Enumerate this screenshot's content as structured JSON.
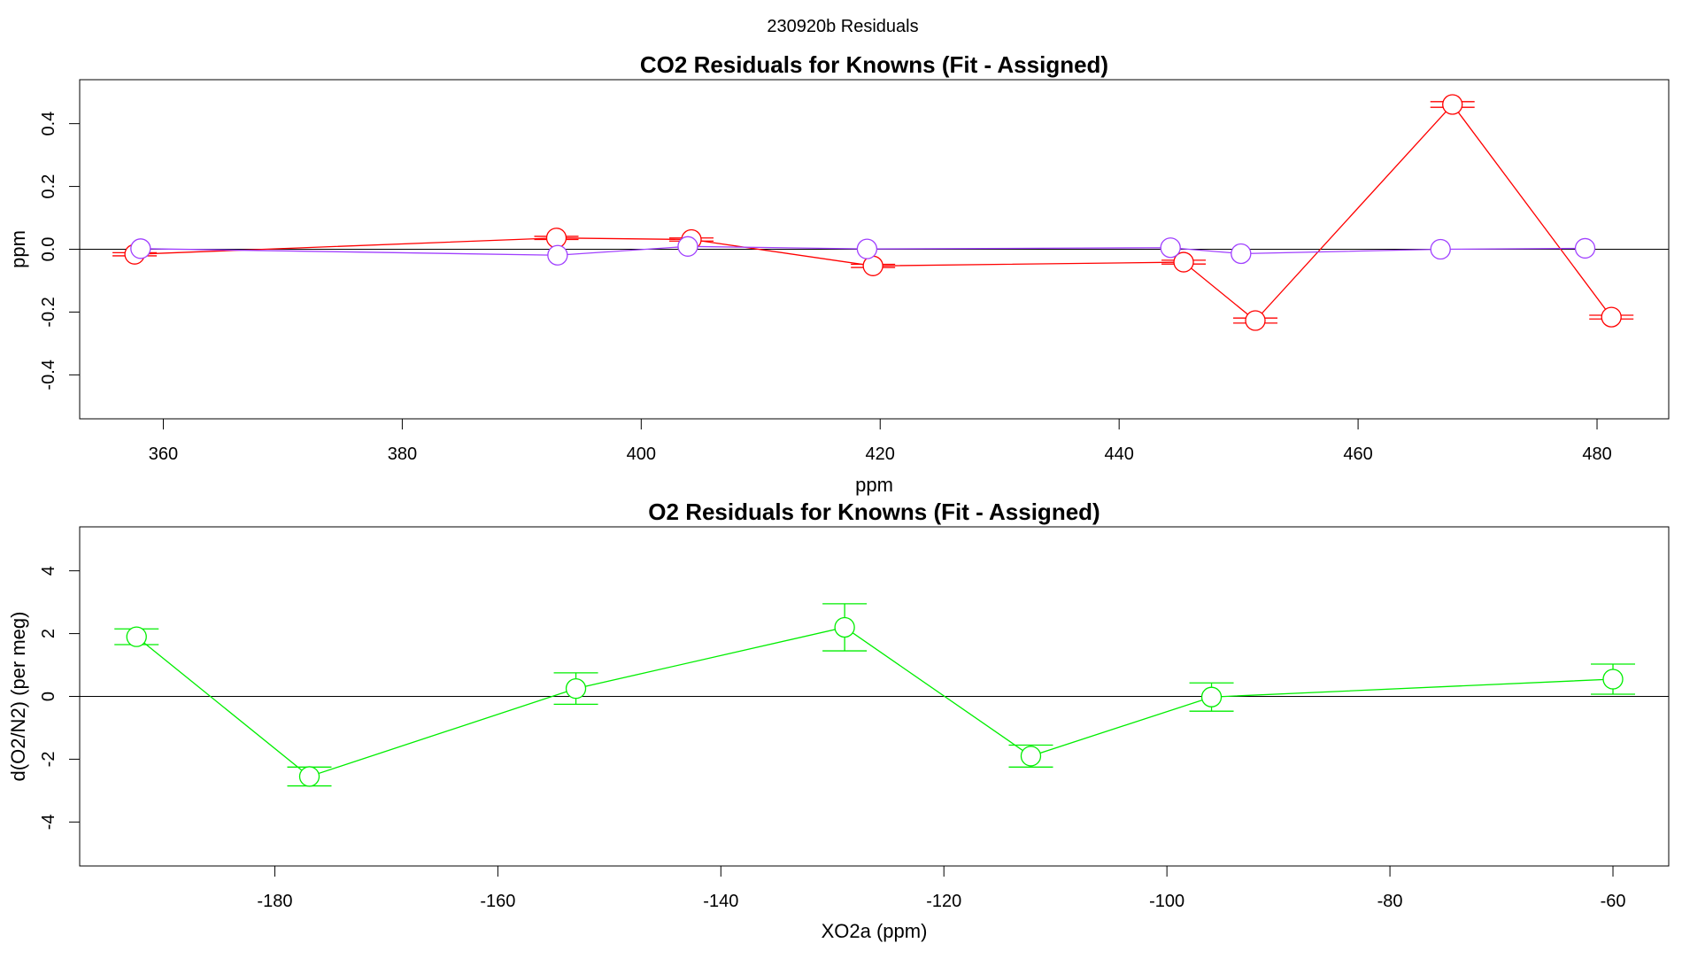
{
  "page_title": "230920b  Residuals",
  "chart_data": [
    {
      "type": "scatter",
      "title": "CO2 Residuals for Knowns (Fit - Assigned)",
      "xlabel": "ppm",
      "ylabel": "ppm",
      "xlim": [
        353,
        486
      ],
      "ylim": [
        -0.54,
        0.54
      ],
      "xticks": [
        "360",
        "380",
        "400",
        "420",
        "440",
        "460",
        "480"
      ],
      "xtick_values": [
        360,
        380,
        400,
        420,
        440,
        460,
        480
      ],
      "yticks": [
        "-0.4",
        "-0.2",
        "0.0",
        "0.2",
        "0.4"
      ],
      "ytick_values": [
        -0.4,
        -0.2,
        0.0,
        0.2,
        0.4
      ],
      "reference_line": 0,
      "series": [
        {
          "color": "#ff0000",
          "x": [
            357.6,
            392.9,
            404.2,
            419.4,
            445.4,
            451.4,
            467.9,
            481.2
          ],
          "y": [
            -0.016,
            0.036,
            0.031,
            -0.053,
            -0.041,
            -0.227,
            0.461,
            -0.216
          ],
          "err": [
            0.005,
            0.005,
            0.005,
            0.005,
            0.006,
            0.008,
            0.009,
            0.006
          ]
        },
        {
          "color": "#a040ff",
          "x": [
            358.1,
            393.0,
            403.9,
            418.9,
            444.3,
            450.2,
            466.9,
            479.0
          ],
          "y": [
            0.002,
            -0.019,
            0.009,
            0.001,
            0.005,
            -0.014,
            0.0,
            0.003
          ],
          "err": [
            0,
            0,
            0,
            0,
            0,
            0,
            0,
            0
          ]
        }
      ]
    },
    {
      "type": "scatter",
      "title": "O2 Residuals for Knowns (Fit - Assigned)",
      "xlabel": "XO2a (ppm)",
      "ylabel": "d(O2/N2) (per meg)",
      "xlim": [
        -197.5,
        -55
      ],
      "ylim": [
        -5.4,
        5.4
      ],
      "xticks": [
        "-180",
        "-160",
        "-140",
        "-120",
        "-100",
        "-80",
        "-60"
      ],
      "xtick_values": [
        -180,
        -160,
        -140,
        -120,
        -100,
        -80,
        -60
      ],
      "yticks": [
        "-4",
        "-2",
        "0",
        "2",
        "4"
      ],
      "ytick_values": [
        -4,
        -2,
        0,
        2,
        4
      ],
      "reference_line": 0,
      "series": [
        {
          "color": "#00ee00",
          "x": [
            -192.4,
            -176.9,
            -153.0,
            -128.9,
            -112.2,
            -96.0,
            -60.0
          ],
          "y": [
            1.9,
            -2.55,
            0.25,
            2.2,
            -1.9,
            -0.02,
            0.55
          ],
          "err": [
            0.25,
            0.3,
            0.5,
            0.75,
            0.35,
            0.45,
            0.48
          ]
        }
      ]
    }
  ]
}
